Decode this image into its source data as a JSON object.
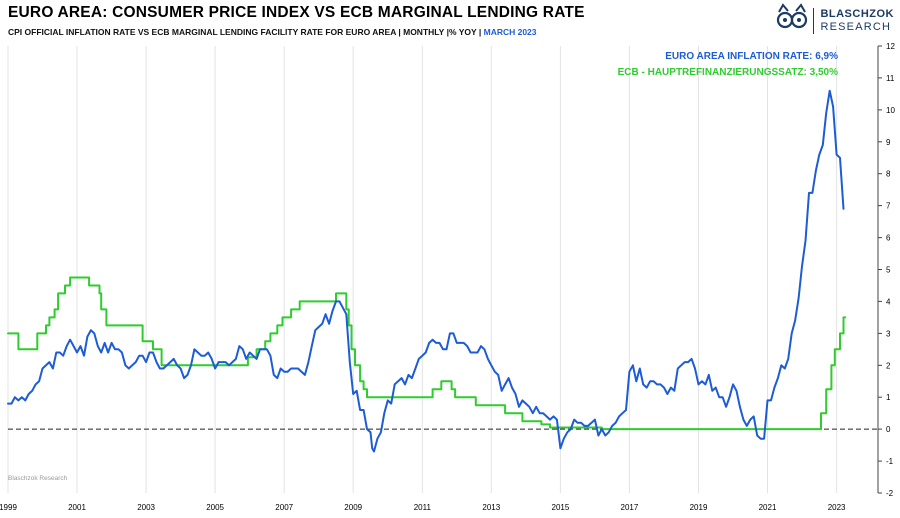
{
  "header": {
    "title": "EURO AREA: CONSUMER PRICE INDEX VS ECB MARGINAL LENDING RATE",
    "subtitle_main": "CPI OFFICIAL INFLATION RATE VS ECB MARGINAL LENDING FACILITY RATE FOR EURO AREA | MONTHLY |% YOY | ",
    "subtitle_date": "MARCH 2023",
    "logo_line1": "BLASCHZOK",
    "logo_line2": "RESEARCH"
  },
  "legend": {
    "series_blue": "EURO AREA INFLATION RATE: 6,9%",
    "series_green": "ECB - HAUPTREFINANZIERUNGSSATZ: 3,50%"
  },
  "watermark": "Blaschzok Research",
  "colors": {
    "blue": "#1d5cd6",
    "green": "#2fcc2f",
    "grid": "#e3e3e3",
    "axis": "#444444",
    "zero_line": "#222222",
    "navy": "#1b3a66"
  },
  "chart_data": {
    "type": "line",
    "title": "EURO AREA: CONSUMER PRICE INDEX VS ECB MARGINAL LENDING RATE",
    "xlabel": "",
    "ylabel": "",
    "x_range": [
      1999,
      2024.2
    ],
    "ylim": [
      -2,
      12
    ],
    "yticks": [
      -2,
      -1,
      0,
      1,
      2,
      3,
      4,
      5,
      6,
      7,
      8,
      9,
      10,
      11,
      12
    ],
    "xticks": [
      1999,
      2001,
      2003,
      2005,
      2007,
      2009,
      2011,
      2013,
      2015,
      2017,
      2019,
      2021,
      2023
    ],
    "grid": "vertical-only, dashed zero line, y-axis on right",
    "legend_position": "top-right inside plot",
    "series": [
      {
        "name": "ECB Hauptrefinanzierungssatz (%)",
        "color": "#2fcc2f",
        "step": true,
        "last_value": "3,50%",
        "points": [
          [
            1999.0,
            3.0
          ],
          [
            1999.3,
            2.5
          ],
          [
            1999.85,
            3.0
          ],
          [
            2000.1,
            3.25
          ],
          [
            2000.2,
            3.5
          ],
          [
            2000.35,
            3.75
          ],
          [
            2000.45,
            4.25
          ],
          [
            2000.65,
            4.5
          ],
          [
            2000.8,
            4.75
          ],
          [
            2001.35,
            4.5
          ],
          [
            2001.65,
            4.25
          ],
          [
            2001.7,
            3.75
          ],
          [
            2001.85,
            3.25
          ],
          [
            2002.9,
            2.75
          ],
          [
            2003.2,
            2.5
          ],
          [
            2003.45,
            2.0
          ],
          [
            2005.95,
            2.25
          ],
          [
            2006.2,
            2.5
          ],
          [
            2006.45,
            2.75
          ],
          [
            2006.6,
            3.0
          ],
          [
            2006.8,
            3.25
          ],
          [
            2006.95,
            3.5
          ],
          [
            2007.2,
            3.75
          ],
          [
            2007.45,
            4.0
          ],
          [
            2008.5,
            4.25
          ],
          [
            2008.8,
            3.75
          ],
          [
            2008.87,
            3.25
          ],
          [
            2008.95,
            2.5
          ],
          [
            2009.05,
            2.0
          ],
          [
            2009.2,
            1.5
          ],
          [
            2009.3,
            1.25
          ],
          [
            2009.4,
            1.0
          ],
          [
            2011.3,
            1.25
          ],
          [
            2011.55,
            1.5
          ],
          [
            2011.85,
            1.25
          ],
          [
            2011.95,
            1.0
          ],
          [
            2012.55,
            0.75
          ],
          [
            2013.4,
            0.5
          ],
          [
            2013.9,
            0.25
          ],
          [
            2014.45,
            0.15
          ],
          [
            2014.7,
            0.05
          ],
          [
            2016.2,
            0.0
          ],
          [
            2022.55,
            0.5
          ],
          [
            2022.7,
            1.25
          ],
          [
            2022.85,
            2.0
          ],
          [
            2022.95,
            2.5
          ],
          [
            2023.1,
            3.0
          ],
          [
            2023.2,
            3.5
          ],
          [
            2023.25,
            3.5
          ]
        ]
      },
      {
        "name": "Euro Area Inflation Rate (% YoY)",
        "color": "#1d5cd6",
        "step": false,
        "last_value": "6,9%",
        "points": [
          [
            1999.0,
            0.8
          ],
          [
            1999.1,
            0.8
          ],
          [
            1999.2,
            1.0
          ],
          [
            1999.3,
            0.9
          ],
          [
            1999.4,
            1.0
          ],
          [
            1999.5,
            0.9
          ],
          [
            1999.6,
            1.1
          ],
          [
            1999.7,
            1.2
          ],
          [
            1999.8,
            1.4
          ],
          [
            1999.9,
            1.5
          ],
          [
            2000.0,
            1.9
          ],
          [
            2000.1,
            2.0
          ],
          [
            2000.2,
            2.1
          ],
          [
            2000.3,
            1.9
          ],
          [
            2000.4,
            2.4
          ],
          [
            2000.5,
            2.4
          ],
          [
            2000.6,
            2.3
          ],
          [
            2000.7,
            2.6
          ],
          [
            2000.8,
            2.8
          ],
          [
            2000.9,
            2.6
          ],
          [
            2001.0,
            2.4
          ],
          [
            2001.1,
            2.6
          ],
          [
            2001.2,
            2.3
          ],
          [
            2001.3,
            2.9
          ],
          [
            2001.4,
            3.1
          ],
          [
            2001.5,
            3.0
          ],
          [
            2001.6,
            2.6
          ],
          [
            2001.7,
            2.4
          ],
          [
            2001.8,
            2.7
          ],
          [
            2001.9,
            2.4
          ],
          [
            2002.0,
            2.7
          ],
          [
            2002.1,
            2.5
          ],
          [
            2002.2,
            2.5
          ],
          [
            2002.3,
            2.4
          ],
          [
            2002.4,
            2.0
          ],
          [
            2002.5,
            1.9
          ],
          [
            2002.6,
            2.0
          ],
          [
            2002.7,
            2.1
          ],
          [
            2002.8,
            2.3
          ],
          [
            2002.9,
            2.3
          ],
          [
            2003.0,
            2.1
          ],
          [
            2003.1,
            2.4
          ],
          [
            2003.2,
            2.4
          ],
          [
            2003.3,
            2.1
          ],
          [
            2003.4,
            1.9
          ],
          [
            2003.5,
            1.9
          ],
          [
            2003.6,
            2.0
          ],
          [
            2003.7,
            2.1
          ],
          [
            2003.8,
            2.2
          ],
          [
            2003.9,
            2.0
          ],
          [
            2004.0,
            1.9
          ],
          [
            2004.1,
            1.6
          ],
          [
            2004.2,
            1.7
          ],
          [
            2004.3,
            2.0
          ],
          [
            2004.4,
            2.5
          ],
          [
            2004.5,
            2.4
          ],
          [
            2004.6,
            2.3
          ],
          [
            2004.7,
            2.3
          ],
          [
            2004.8,
            2.4
          ],
          [
            2004.9,
            2.2
          ],
          [
            2005.0,
            1.9
          ],
          [
            2005.1,
            2.1
          ],
          [
            2005.2,
            2.1
          ],
          [
            2005.3,
            2.1
          ],
          [
            2005.4,
            2.0
          ],
          [
            2005.5,
            2.1
          ],
          [
            2005.6,
            2.2
          ],
          [
            2005.7,
            2.6
          ],
          [
            2005.8,
            2.5
          ],
          [
            2005.9,
            2.2
          ],
          [
            2006.0,
            2.4
          ],
          [
            2006.1,
            2.3
          ],
          [
            2006.2,
            2.2
          ],
          [
            2006.3,
            2.5
          ],
          [
            2006.4,
            2.5
          ],
          [
            2006.5,
            2.5
          ],
          [
            2006.6,
            2.3
          ],
          [
            2006.7,
            1.7
          ],
          [
            2006.8,
            1.6
          ],
          [
            2006.9,
            1.9
          ],
          [
            2007.0,
            1.8
          ],
          [
            2007.1,
            1.8
          ],
          [
            2007.2,
            1.9
          ],
          [
            2007.3,
            1.9
          ],
          [
            2007.4,
            1.9
          ],
          [
            2007.5,
            1.8
          ],
          [
            2007.6,
            1.7
          ],
          [
            2007.7,
            2.1
          ],
          [
            2007.8,
            2.6
          ],
          [
            2007.9,
            3.1
          ],
          [
            2008.0,
            3.2
          ],
          [
            2008.1,
            3.3
          ],
          [
            2008.2,
            3.6
          ],
          [
            2008.3,
            3.3
          ],
          [
            2008.4,
            3.7
          ],
          [
            2008.5,
            4.0
          ],
          [
            2008.6,
            4.0
          ],
          [
            2008.7,
            3.8
          ],
          [
            2008.8,
            3.6
          ],
          [
            2008.9,
            2.1
          ],
          [
            2009.0,
            1.1
          ],
          [
            2009.1,
            1.2
          ],
          [
            2009.2,
            0.6
          ],
          [
            2009.3,
            0.6
          ],
          [
            2009.4,
            0.0
          ],
          [
            2009.5,
            -0.1
          ],
          [
            2009.55,
            -0.6
          ],
          [
            2009.6,
            -0.7
          ],
          [
            2009.7,
            -0.3
          ],
          [
            2009.8,
            -0.1
          ],
          [
            2009.9,
            0.5
          ],
          [
            2010.0,
            0.9
          ],
          [
            2010.1,
            0.8
          ],
          [
            2010.2,
            1.4
          ],
          [
            2010.3,
            1.5
          ],
          [
            2010.4,
            1.6
          ],
          [
            2010.5,
            1.4
          ],
          [
            2010.6,
            1.7
          ],
          [
            2010.7,
            1.6
          ],
          [
            2010.8,
            1.9
          ],
          [
            2010.9,
            2.2
          ],
          [
            2011.0,
            2.3
          ],
          [
            2011.1,
            2.4
          ],
          [
            2011.2,
            2.7
          ],
          [
            2011.3,
            2.8
          ],
          [
            2011.4,
            2.7
          ],
          [
            2011.5,
            2.7
          ],
          [
            2011.6,
            2.5
          ],
          [
            2011.7,
            2.5
          ],
          [
            2011.8,
            3.0
          ],
          [
            2011.9,
            3.0
          ],
          [
            2012.0,
            2.7
          ],
          [
            2012.1,
            2.7
          ],
          [
            2012.2,
            2.7
          ],
          [
            2012.3,
            2.6
          ],
          [
            2012.4,
            2.4
          ],
          [
            2012.5,
            2.4
          ],
          [
            2012.6,
            2.4
          ],
          [
            2012.7,
            2.6
          ],
          [
            2012.8,
            2.5
          ],
          [
            2012.9,
            2.2
          ],
          [
            2013.0,
            2.0
          ],
          [
            2013.1,
            1.8
          ],
          [
            2013.2,
            1.7
          ],
          [
            2013.3,
            1.2
          ],
          [
            2013.4,
            1.4
          ],
          [
            2013.5,
            1.6
          ],
          [
            2013.6,
            1.3
          ],
          [
            2013.7,
            1.1
          ],
          [
            2013.8,
            0.7
          ],
          [
            2013.9,
            0.9
          ],
          [
            2014.0,
            0.8
          ],
          [
            2014.1,
            0.7
          ],
          [
            2014.2,
            0.5
          ],
          [
            2014.3,
            0.7
          ],
          [
            2014.4,
            0.5
          ],
          [
            2014.5,
            0.5
          ],
          [
            2014.6,
            0.4
          ],
          [
            2014.7,
            0.3
          ],
          [
            2014.8,
            0.4
          ],
          [
            2014.9,
            0.3
          ],
          [
            2015.0,
            -0.6
          ],
          [
            2015.1,
            -0.3
          ],
          [
            2015.2,
            -0.1
          ],
          [
            2015.3,
            0.0
          ],
          [
            2015.4,
            0.3
          ],
          [
            2015.5,
            0.2
          ],
          [
            2015.6,
            0.2
          ],
          [
            2015.7,
            0.1
          ],
          [
            2015.8,
            0.1
          ],
          [
            2015.9,
            0.2
          ],
          [
            2016.0,
            0.3
          ],
          [
            2016.1,
            -0.2
          ],
          [
            2016.2,
            0.0
          ],
          [
            2016.3,
            -0.2
          ],
          [
            2016.4,
            -0.1
          ],
          [
            2016.5,
            0.1
          ],
          [
            2016.6,
            0.2
          ],
          [
            2016.7,
            0.4
          ],
          [
            2016.8,
            0.5
          ],
          [
            2016.9,
            0.6
          ],
          [
            2017.0,
            1.8
          ],
          [
            2017.1,
            2.0
          ],
          [
            2017.2,
            1.5
          ],
          [
            2017.3,
            1.9
          ],
          [
            2017.4,
            1.4
          ],
          [
            2017.5,
            1.3
          ],
          [
            2017.6,
            1.5
          ],
          [
            2017.7,
            1.5
          ],
          [
            2017.8,
            1.4
          ],
          [
            2017.9,
            1.4
          ],
          [
            2018.0,
            1.3
          ],
          [
            2018.1,
            1.1
          ],
          [
            2018.2,
            1.3
          ],
          [
            2018.3,
            1.2
          ],
          [
            2018.4,
            1.9
          ],
          [
            2018.5,
            2.0
          ],
          [
            2018.6,
            2.1
          ],
          [
            2018.7,
            2.1
          ],
          [
            2018.8,
            2.2
          ],
          [
            2018.9,
            1.9
          ],
          [
            2019.0,
            1.4
          ],
          [
            2019.1,
            1.5
          ],
          [
            2019.2,
            1.4
          ],
          [
            2019.3,
            1.7
          ],
          [
            2019.4,
            1.2
          ],
          [
            2019.5,
            1.3
          ],
          [
            2019.6,
            1.0
          ],
          [
            2019.7,
            1.0
          ],
          [
            2019.8,
            0.7
          ],
          [
            2019.9,
            1.0
          ],
          [
            2020.0,
            1.4
          ],
          [
            2020.1,
            1.2
          ],
          [
            2020.2,
            0.7
          ],
          [
            2020.3,
            0.3
          ],
          [
            2020.4,
            0.1
          ],
          [
            2020.5,
            0.3
          ],
          [
            2020.6,
            0.4
          ],
          [
            2020.7,
            -0.2
          ],
          [
            2020.8,
            -0.3
          ],
          [
            2020.9,
            -0.3
          ],
          [
            2021.0,
            0.9
          ],
          [
            2021.1,
            0.9
          ],
          [
            2021.2,
            1.3
          ],
          [
            2021.3,
            1.6
          ],
          [
            2021.4,
            2.0
          ],
          [
            2021.5,
            1.9
          ],
          [
            2021.6,
            2.2
          ],
          [
            2021.7,
            3.0
          ],
          [
            2021.8,
            3.4
          ],
          [
            2021.9,
            4.1
          ],
          [
            2022.0,
            5.1
          ],
          [
            2022.1,
            5.9
          ],
          [
            2022.2,
            7.4
          ],
          [
            2022.3,
            7.4
          ],
          [
            2022.4,
            8.1
          ],
          [
            2022.5,
            8.6
          ],
          [
            2022.6,
            8.9
          ],
          [
            2022.7,
            9.9
          ],
          [
            2022.8,
            10.6
          ],
          [
            2022.9,
            10.1
          ],
          [
            2023.0,
            8.6
          ],
          [
            2023.1,
            8.5
          ],
          [
            2023.2,
            6.9
          ]
        ]
      }
    ]
  }
}
